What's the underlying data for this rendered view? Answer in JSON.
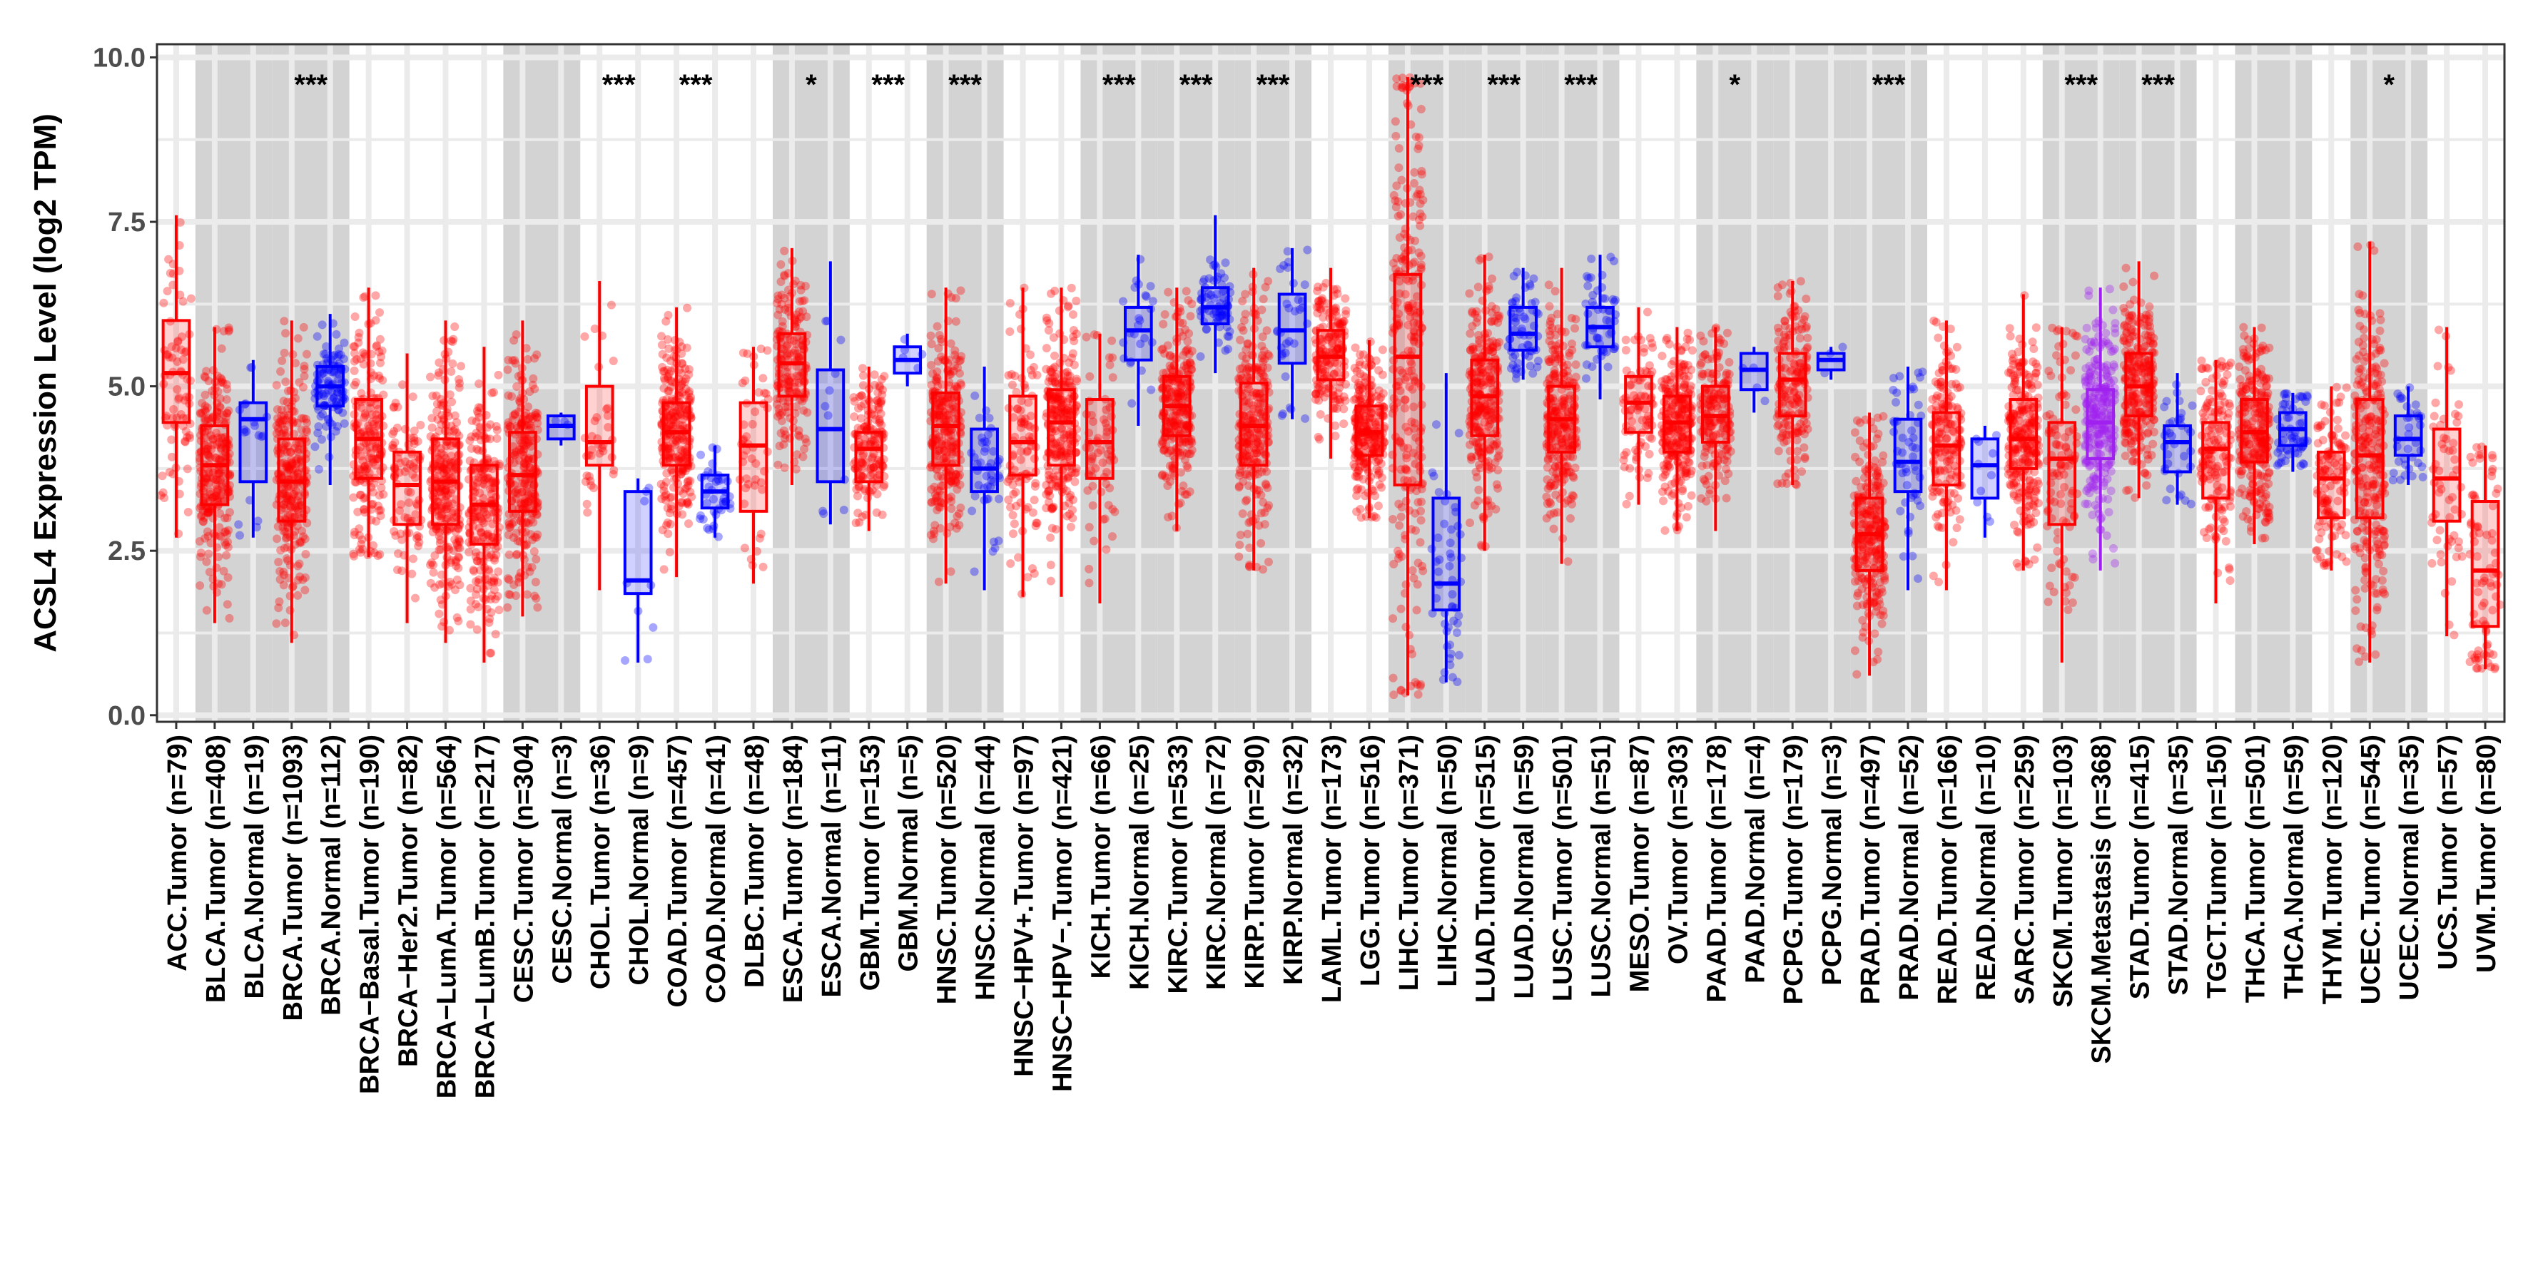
{
  "chart_data": {
    "type": "box",
    "title": "",
    "xlabel": "",
    "ylabel": "ACSL4 Expression Level (log2 TPM)",
    "ylim": [
      -0.1,
      10.2
    ],
    "yticks": [
      0.0,
      2.5,
      5.0,
      7.5,
      10.0
    ],
    "ytick_labels": [
      "0.0",
      "2.5",
      "5.0",
      "7.5",
      "10.0"
    ],
    "colors": {
      "Tumor": "#ff0000",
      "Normal": "#0000ff",
      "Metastasis": "#a020f0"
    },
    "cancer_bands": [
      {
        "name": "ACC",
        "start": 0,
        "end": 0,
        "shaded": false
      },
      {
        "name": "BLCA",
        "start": 1,
        "end": 2,
        "shaded": true
      },
      {
        "name": "BRCA",
        "start": 3,
        "end": 4,
        "shaded": true
      },
      {
        "name": "BRCA subtypes",
        "start": 5,
        "end": 8,
        "shaded": false
      },
      {
        "name": "CESC",
        "start": 9,
        "end": 10,
        "shaded": true
      },
      {
        "name": "CHOL",
        "start": 11,
        "end": 12,
        "shaded": false
      },
      {
        "name": "COAD",
        "start": 13,
        "end": 14,
        "shaded": false
      },
      {
        "name": "DLBC",
        "start": 15,
        "end": 15,
        "shaded": false
      },
      {
        "name": "ESCA",
        "start": 16,
        "end": 17,
        "shaded": true
      },
      {
        "name": "GBM",
        "start": 18,
        "end": 19,
        "shaded": false
      },
      {
        "name": "HNSC",
        "start": 20,
        "end": 21,
        "shaded": true
      },
      {
        "name": "HNSC-HPV",
        "start": 22,
        "end": 23,
        "shaded": false
      },
      {
        "name": "KICH",
        "start": 24,
        "end": 25,
        "shaded": true
      },
      {
        "name": "KIRC",
        "start": 26,
        "end": 27,
        "shaded": true
      },
      {
        "name": "KIRP",
        "start": 28,
        "end": 29,
        "shaded": true
      },
      {
        "name": "LAML",
        "start": 30,
        "end": 30,
        "shaded": false
      },
      {
        "name": "LGG",
        "start": 31,
        "end": 31,
        "shaded": false
      },
      {
        "name": "LIHC",
        "start": 32,
        "end": 33,
        "shaded": true
      },
      {
        "name": "LUAD",
        "start": 34,
        "end": 35,
        "shaded": true
      },
      {
        "name": "LUSC",
        "start": 36,
        "end": 37,
        "shaded": true
      },
      {
        "name": "MESO",
        "start": 38,
        "end": 38,
        "shaded": false
      },
      {
        "name": "OV",
        "start": 39,
        "end": 39,
        "shaded": false
      },
      {
        "name": "PAAD",
        "start": 40,
        "end": 41,
        "shaded": true
      },
      {
        "name": "PCPG",
        "start": 42,
        "end": 43,
        "shaded": true
      },
      {
        "name": "PRAD",
        "start": 44,
        "end": 45,
        "shaded": true
      },
      {
        "name": "READ",
        "start": 46,
        "end": 47,
        "shaded": false
      },
      {
        "name": "SARC",
        "start": 48,
        "end": 48,
        "shaded": false
      },
      {
        "name": "SKCM",
        "start": 49,
        "end": 50,
        "shaded": true
      },
      {
        "name": "STAD",
        "start": 51,
        "end": 52,
        "shaded": true
      },
      {
        "name": "TGCT",
        "start": 53,
        "end": 53,
        "shaded": false
      },
      {
        "name": "THCA",
        "start": 54,
        "end": 55,
        "shaded": true
      },
      {
        "name": "THYM",
        "start": 56,
        "end": 56,
        "shaded": false
      },
      {
        "name": "UCEC",
        "start": 57,
        "end": 58,
        "shaded": true
      },
      {
        "name": "UCS",
        "start": 59,
        "end": 59,
        "shaded": false
      },
      {
        "name": "UVM",
        "start": 60,
        "end": 60,
        "shaded": false
      }
    ],
    "significance": [
      {
        "label": "***",
        "start": 3,
        "end": 4
      },
      {
        "label": "***",
        "start": 11,
        "end": 12
      },
      {
        "label": "***",
        "start": 13,
        "end": 14
      },
      {
        "label": "*",
        "start": 16,
        "end": 17
      },
      {
        "label": "***",
        "start": 18,
        "end": 19
      },
      {
        "label": "***",
        "start": 20,
        "end": 21
      },
      {
        "label": "***",
        "start": 24,
        "end": 25
      },
      {
        "label": "***",
        "start": 26,
        "end": 27
      },
      {
        "label": "***",
        "start": 28,
        "end": 29
      },
      {
        "label": "***",
        "start": 32,
        "end": 33
      },
      {
        "label": "***",
        "start": 34,
        "end": 35
      },
      {
        "label": "***",
        "start": 36,
        "end": 37
      },
      {
        "label": "*",
        "start": 40,
        "end": 41
      },
      {
        "label": "***",
        "start": 44,
        "end": 45
      },
      {
        "label": "***",
        "start": 49,
        "end": 50
      },
      {
        "label": "***",
        "start": 51,
        "end": 52
      },
      {
        "label": "*",
        "start": 57,
        "end": 58
      }
    ],
    "groups": [
      {
        "label": "ACC.Tumor (n=79)",
        "group": "Tumor",
        "n": 79,
        "min": 2.7,
        "q1": 4.45,
        "median": 5.2,
        "q3": 6.0,
        "max": 7.6
      },
      {
        "label": "BLCA.Tumor (n=408)",
        "group": "Tumor",
        "n": 408,
        "min": 1.4,
        "q1": 3.2,
        "median": 3.8,
        "q3": 4.4,
        "max": 5.9
      },
      {
        "label": "BLCA.Normal (n=19)",
        "group": "Normal",
        "n": 19,
        "min": 2.7,
        "q1": 3.55,
        "median": 4.5,
        "q3": 4.75,
        "max": 5.4
      },
      {
        "label": "BRCA.Tumor (n=1093)",
        "group": "Tumor",
        "n": 1093,
        "min": 1.1,
        "q1": 2.95,
        "median": 3.55,
        "q3": 4.2,
        "max": 6.0
      },
      {
        "label": "BRCA.Normal (n=112)",
        "group": "Normal",
        "n": 112,
        "min": 3.5,
        "q1": 4.7,
        "median": 5.0,
        "q3": 5.3,
        "max": 6.1
      },
      {
        "label": "BRCA−Basal.Tumor (n=190)",
        "group": "Tumor",
        "n": 190,
        "min": 2.4,
        "q1": 3.6,
        "median": 4.2,
        "q3": 4.8,
        "max": 6.5
      },
      {
        "label": "BRCA−Her2.Tumor (n=82)",
        "group": "Tumor",
        "n": 82,
        "min": 1.4,
        "q1": 2.9,
        "median": 3.5,
        "q3": 4.0,
        "max": 5.5
      },
      {
        "label": "BRCA−LumA.Tumor (n=564)",
        "group": "Tumor",
        "n": 564,
        "min": 1.1,
        "q1": 2.9,
        "median": 3.55,
        "q3": 4.2,
        "max": 6.0
      },
      {
        "label": "BRCA−LumB.Tumor (n=217)",
        "group": "Tumor",
        "n": 217,
        "min": 0.8,
        "q1": 2.6,
        "median": 3.2,
        "q3": 3.8,
        "max": 5.6
      },
      {
        "label": "CESC.Tumor (n=304)",
        "group": "Tumor",
        "n": 304,
        "min": 1.5,
        "q1": 3.1,
        "median": 3.65,
        "q3": 4.3,
        "max": 6.0
      },
      {
        "label": "CESC.Normal (n=3)",
        "group": "Normal",
        "n": 3,
        "min": 4.1,
        "q1": 4.2,
        "median": 4.4,
        "q3": 4.55,
        "max": 4.6
      },
      {
        "label": "CHOL.Tumor (n=36)",
        "group": "Tumor",
        "n": 36,
        "min": 1.9,
        "q1": 3.8,
        "median": 4.15,
        "q3": 5.0,
        "max": 6.6
      },
      {
        "label": "CHOL.Normal (n=9)",
        "group": "Normal",
        "n": 9,
        "min": 0.8,
        "q1": 1.85,
        "median": 2.05,
        "q3": 3.4,
        "max": 3.6
      },
      {
        "label": "COAD.Tumor (n=457)",
        "group": "Tumor",
        "n": 457,
        "min": 2.1,
        "q1": 3.8,
        "median": 4.3,
        "q3": 4.75,
        "max": 6.2
      },
      {
        "label": "COAD.Normal (n=41)",
        "group": "Normal",
        "n": 41,
        "min": 2.7,
        "q1": 3.15,
        "median": 3.4,
        "q3": 3.65,
        "max": 4.1
      },
      {
        "label": "DLBC.Tumor (n=48)",
        "group": "Tumor",
        "n": 48,
        "min": 2.0,
        "q1": 3.1,
        "median": 4.1,
        "q3": 4.75,
        "max": 5.6
      },
      {
        "label": "ESCA.Tumor (n=184)",
        "group": "Tumor",
        "n": 184,
        "min": 3.5,
        "q1": 4.85,
        "median": 5.35,
        "q3": 5.8,
        "max": 7.1
      },
      {
        "label": "ESCA.Normal (n=11)",
        "group": "Normal",
        "n": 11,
        "min": 2.9,
        "q1": 3.55,
        "median": 4.35,
        "q3": 5.25,
        "max": 6.9
      },
      {
        "label": "GBM.Tumor (n=153)",
        "group": "Tumor",
        "n": 153,
        "min": 2.8,
        "q1": 3.55,
        "median": 4.05,
        "q3": 4.3,
        "max": 5.3
      },
      {
        "label": "GBM.Normal (n=5)",
        "group": "Normal",
        "n": 5,
        "min": 5.0,
        "q1": 5.2,
        "median": 5.4,
        "q3": 5.6,
        "max": 5.8
      },
      {
        "label": "HNSC.Tumor (n=520)",
        "group": "Tumor",
        "n": 520,
        "min": 2.0,
        "q1": 3.8,
        "median": 4.4,
        "q3": 4.9,
        "max": 6.5
      },
      {
        "label": "HNSC.Normal (n=44)",
        "group": "Normal",
        "n": 44,
        "min": 1.9,
        "q1": 3.4,
        "median": 3.75,
        "q3": 4.35,
        "max": 5.3
      },
      {
        "label": "HNSC−HPV+.Tumor (n=97)",
        "group": "Tumor",
        "n": 97,
        "min": 1.8,
        "q1": 3.65,
        "median": 4.15,
        "q3": 4.85,
        "max": 6.5
      },
      {
        "label": "HNSC−HPV−.Tumor (n=421)",
        "group": "Tumor",
        "n": 421,
        "min": 1.8,
        "q1": 3.8,
        "median": 4.45,
        "q3": 4.95,
        "max": 6.5
      },
      {
        "label": "KICH.Tumor (n=66)",
        "group": "Tumor",
        "n": 66,
        "min": 1.7,
        "q1": 3.6,
        "median": 4.15,
        "q3": 4.8,
        "max": 5.8
      },
      {
        "label": "KICH.Normal (n=25)",
        "group": "Normal",
        "n": 25,
        "min": 4.4,
        "q1": 5.4,
        "median": 5.85,
        "q3": 6.2,
        "max": 7.0
      },
      {
        "label": "KIRC.Tumor (n=533)",
        "group": "Tumor",
        "n": 533,
        "min": 2.8,
        "q1": 4.25,
        "median": 4.7,
        "q3": 5.15,
        "max": 6.5
      },
      {
        "label": "KIRC.Normal (n=72)",
        "group": "Normal",
        "n": 72,
        "min": 5.2,
        "q1": 5.95,
        "median": 6.2,
        "q3": 6.5,
        "max": 7.6
      },
      {
        "label": "KIRP.Tumor (n=290)",
        "group": "Tumor",
        "n": 290,
        "min": 2.2,
        "q1": 3.8,
        "median": 4.4,
        "q3": 5.05,
        "max": 6.8
      },
      {
        "label": "KIRP.Normal (n=32)",
        "group": "Normal",
        "n": 32,
        "min": 4.5,
        "q1": 5.35,
        "median": 5.85,
        "q3": 6.4,
        "max": 7.1
      },
      {
        "label": "LAML.Tumor (n=173)",
        "group": "Tumor",
        "n": 173,
        "min": 3.9,
        "q1": 5.1,
        "median": 5.45,
        "q3": 5.85,
        "max": 6.8
      },
      {
        "label": "LGG.Tumor (n=516)",
        "group": "Tumor",
        "n": 516,
        "min": 3.0,
        "q1": 3.95,
        "median": 4.3,
        "q3": 4.7,
        "max": 5.7
      },
      {
        "label": "LIHC.Tumor (n=371)",
        "group": "Tumor",
        "n": 371,
        "min": 0.3,
        "q1": 3.5,
        "median": 5.45,
        "q3": 6.7,
        "max": 9.7
      },
      {
        "label": "LIHC.Normal (n=50)",
        "group": "Normal",
        "n": 50,
        "min": 0.5,
        "q1": 1.6,
        "median": 2.0,
        "q3": 3.3,
        "max": 5.2
      },
      {
        "label": "LUAD.Tumor (n=515)",
        "group": "Tumor",
        "n": 515,
        "min": 2.5,
        "q1": 4.25,
        "median": 4.85,
        "q3": 5.4,
        "max": 7.0
      },
      {
        "label": "LUAD.Normal (n=59)",
        "group": "Normal",
        "n": 59,
        "min": 5.1,
        "q1": 5.55,
        "median": 5.8,
        "q3": 6.2,
        "max": 6.8
      },
      {
        "label": "LUSC.Tumor (n=501)",
        "group": "Tumor",
        "n": 501,
        "min": 2.3,
        "q1": 4.0,
        "median": 4.5,
        "q3": 5.0,
        "max": 6.8
      },
      {
        "label": "LUSC.Normal (n=51)",
        "group": "Normal",
        "n": 51,
        "min": 4.8,
        "q1": 5.6,
        "median": 5.9,
        "q3": 6.2,
        "max": 7.0
      },
      {
        "label": "MESO.Tumor (n=87)",
        "group": "Tumor",
        "n": 87,
        "min": 3.2,
        "q1": 4.3,
        "median": 4.75,
        "q3": 5.15,
        "max": 6.2
      },
      {
        "label": "OV.Tumor (n=303)",
        "group": "Tumor",
        "n": 303,
        "min": 2.8,
        "q1": 4.0,
        "median": 4.45,
        "q3": 4.85,
        "max": 5.9
      },
      {
        "label": "PAAD.Tumor (n=178)",
        "group": "Tumor",
        "n": 178,
        "min": 2.8,
        "q1": 4.15,
        "median": 4.55,
        "q3": 5.0,
        "max": 5.9
      },
      {
        "label": "PAAD.Normal (n=4)",
        "group": "Normal",
        "n": 4,
        "min": 4.6,
        "q1": 4.95,
        "median": 5.25,
        "q3": 5.5,
        "max": 5.6
      },
      {
        "label": "PCPG.Tumor (n=179)",
        "group": "Tumor",
        "n": 179,
        "min": 3.5,
        "q1": 4.55,
        "median": 5.1,
        "q3": 5.5,
        "max": 6.6
      },
      {
        "label": "PCPG.Normal (n=3)",
        "group": "Normal",
        "n": 3,
        "min": 5.1,
        "q1": 5.25,
        "median": 5.4,
        "q3": 5.5,
        "max": 5.6
      },
      {
        "label": "PRAD.Tumor (n=497)",
        "group": "Tumor",
        "n": 497,
        "min": 0.6,
        "q1": 2.2,
        "median": 2.75,
        "q3": 3.3,
        "max": 4.6
      },
      {
        "label": "PRAD.Normal (n=52)",
        "group": "Normal",
        "n": 52,
        "min": 1.9,
        "q1": 3.4,
        "median": 3.85,
        "q3": 4.5,
        "max": 5.3
      },
      {
        "label": "READ.Tumor (n=166)",
        "group": "Tumor",
        "n": 166,
        "min": 1.9,
        "q1": 3.5,
        "median": 4.1,
        "q3": 4.6,
        "max": 6.0
      },
      {
        "label": "READ.Normal (n=10)",
        "group": "Normal",
        "n": 10,
        "min": 2.7,
        "q1": 3.3,
        "median": 3.8,
        "q3": 4.2,
        "max": 4.4
      },
      {
        "label": "SARC.Tumor (n=259)",
        "group": "Tumor",
        "n": 259,
        "min": 2.2,
        "q1": 3.75,
        "median": 4.2,
        "q3": 4.8,
        "max": 6.4
      },
      {
        "label": "SKCM.Tumor (n=103)",
        "group": "Tumor",
        "n": 103,
        "min": 0.8,
        "q1": 2.9,
        "median": 3.9,
        "q3": 4.45,
        "max": 5.9
      },
      {
        "label": "SKCM.Metastasis (n=368)",
        "group": "Metastasis",
        "n": 368,
        "min": 2.2,
        "q1": 3.9,
        "median": 4.45,
        "q3": 4.95,
        "max": 6.5
      },
      {
        "label": "STAD.Tumor (n=415)",
        "group": "Tumor",
        "n": 415,
        "min": 3.3,
        "q1": 4.55,
        "median": 5.0,
        "q3": 5.5,
        "max": 6.9
      },
      {
        "label": "STAD.Normal (n=35)",
        "group": "Normal",
        "n": 35,
        "min": 3.2,
        "q1": 3.7,
        "median": 4.15,
        "q3": 4.4,
        "max": 5.2
      },
      {
        "label": "TGCT.Tumor (n=150)",
        "group": "Tumor",
        "n": 150,
        "min": 1.7,
        "q1": 3.3,
        "median": 4.05,
        "q3": 4.45,
        "max": 5.4
      },
      {
        "label": "THCA.Tumor (n=501)",
        "group": "Tumor",
        "n": 501,
        "min": 2.6,
        "q1": 3.85,
        "median": 4.3,
        "q3": 4.8,
        "max": 5.9
      },
      {
        "label": "THCA.Normal (n=59)",
        "group": "Normal",
        "n": 59,
        "min": 3.7,
        "q1": 4.1,
        "median": 4.35,
        "q3": 4.6,
        "max": 4.9
      },
      {
        "label": "THYM.Tumor (n=120)",
        "group": "Tumor",
        "n": 120,
        "min": 2.2,
        "q1": 3.0,
        "median": 3.6,
        "q3": 4.0,
        "max": 5.0
      },
      {
        "label": "UCEC.Tumor (n=545)",
        "group": "Tumor",
        "n": 545,
        "min": 0.8,
        "q1": 3.0,
        "median": 3.95,
        "q3": 4.8,
        "max": 7.2
      },
      {
        "label": "UCEC.Normal (n=35)",
        "group": "Normal",
        "n": 35,
        "min": 3.5,
        "q1": 3.95,
        "median": 4.2,
        "q3": 4.55,
        "max": 5.0
      },
      {
        "label": "UCS.Tumor (n=57)",
        "group": "Tumor",
        "n": 57,
        "min": 1.2,
        "q1": 2.95,
        "median": 3.6,
        "q3": 4.35,
        "max": 5.9
      },
      {
        "label": "UVM.Tumor (n=80)",
        "group": "Tumor",
        "n": 80,
        "min": 0.7,
        "q1": 1.35,
        "median": 2.2,
        "q3": 3.25,
        "max": 4.1
      }
    ]
  }
}
